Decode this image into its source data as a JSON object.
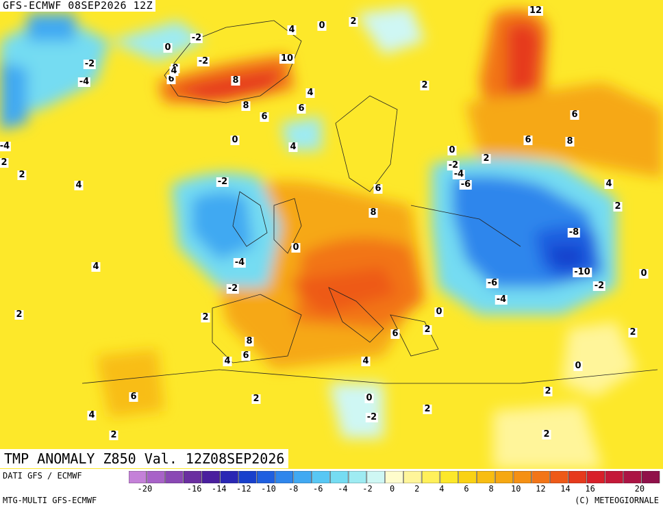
{
  "header": {
    "model_run": "GFS-ECMWF 08SEP2026 12Z"
  },
  "title": "TMP ANOMALY Z850 Val. 12Z08SEP2026",
  "footer": {
    "source_1": "DATI GFS / ECMWF",
    "source_2": "MTG-MULTI GFS-ECMWF",
    "copyright": "(C) METEOGIORNALE"
  },
  "legend": {
    "colors": [
      "#c481d8",
      "#a862c8",
      "#8a48b4",
      "#6a2ea0",
      "#4a1f9e",
      "#2a27b4",
      "#1840cc",
      "#1f5fe0",
      "#2f86ec",
      "#41a9f2",
      "#58c7f4",
      "#75dcf2",
      "#9eebf2",
      "#cff7f4",
      "#fffccc",
      "#fff59a",
      "#fff05a",
      "#fde82a",
      "#fad214",
      "#f8bd12",
      "#f6a812",
      "#f59014",
      "#f27518",
      "#ee5a18",
      "#e63a1c",
      "#d8202a",
      "#c41838",
      "#ab1444",
      "#90104a"
    ],
    "ticks": [
      "-20",
      "-18",
      "-16",
      "-14",
      "-12",
      "-10",
      "-8",
      "-6",
      "-4",
      "-2",
      "0",
      "2",
      "4",
      "6",
      "8",
      "10",
      "12",
      "14",
      "16",
      "18",
      "20"
    ],
    "shown_ticks": [
      "-20",
      "-16",
      "-14",
      "-12",
      "-10",
      "-8",
      "-6",
      "-4",
      "-2",
      "0",
      "2",
      "4",
      "6",
      "8",
      "10",
      "12",
      "14",
      "16",
      "20"
    ]
  },
  "map_labels": [
    "12",
    "0",
    "2",
    "-2",
    "4",
    "0",
    "10",
    "8",
    "8",
    "6",
    "6",
    "0",
    "4",
    "-2",
    "-4",
    "-2",
    "0",
    "4",
    "2",
    "2",
    "4",
    "6",
    "6",
    "8",
    "0",
    "-2",
    "-4",
    "-6",
    "2",
    "-2",
    "-4",
    "0",
    "4",
    "2",
    "-8",
    "-10",
    "-2",
    "0",
    "-6",
    "-4",
    "4",
    "2",
    "6",
    "8",
    "2",
    "8",
    "4",
    "6",
    "2",
    "0",
    "-2",
    "2",
    "6",
    "0",
    "2",
    "2",
    "4",
    "2",
    "2",
    "0",
    "-2",
    "-4",
    "2",
    "4",
    "6",
    "6",
    "4",
    "2"
  ]
}
